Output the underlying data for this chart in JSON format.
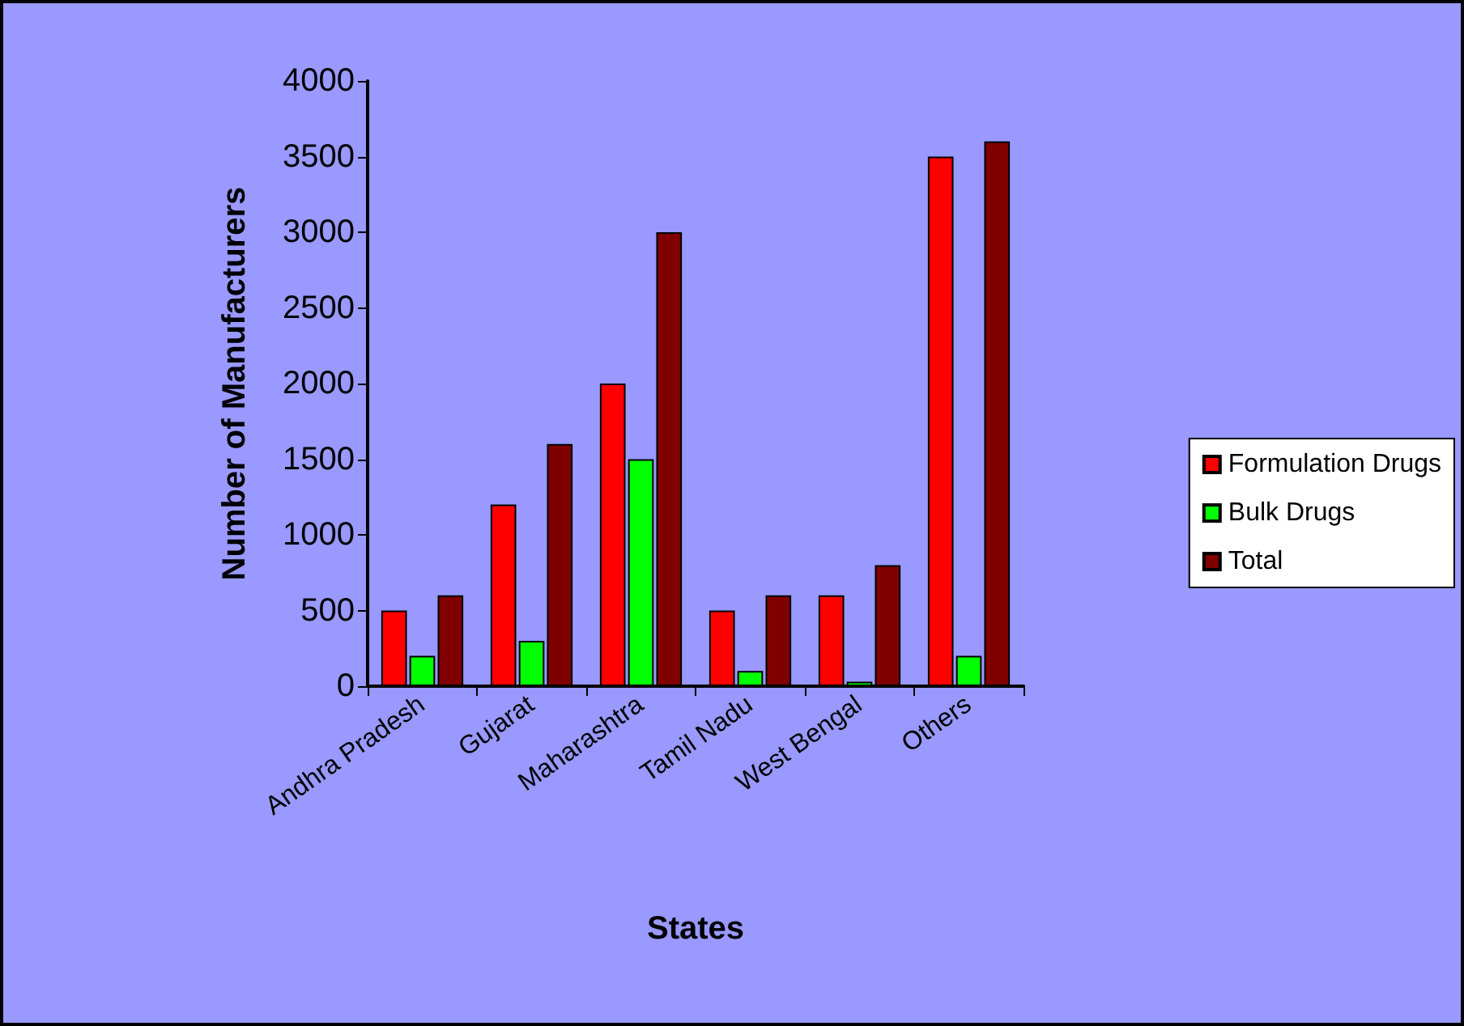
{
  "chart_data": {
    "type": "bar",
    "xlabel": "States",
    "ylabel": "Number of Manufacturers",
    "categories": [
      "Andhra Pradesh",
      "Gujarat",
      "Maharashtra",
      "Tamil Nadu",
      "West Bengal",
      "Others"
    ],
    "series": [
      {
        "name": "Formulation Drugs",
        "color": "#ff0000",
        "values": [
          500,
          1200,
          2000,
          500,
          600,
          3500
        ]
      },
      {
        "name": "Bulk Drugs",
        "color": "#00ff00",
        "values": [
          200,
          300,
          1500,
          100,
          30,
          200
        ]
      },
      {
        "name": "Total",
        "color": "#800000",
        "values": [
          600,
          1600,
          3000,
          600,
          800,
          3600
        ]
      }
    ],
    "ylim": [
      0,
      4000
    ],
    "yticks": [
      0,
      500,
      1000,
      1500,
      2000,
      2500,
      3000,
      3500,
      4000
    ],
    "grid": false,
    "legend": "right"
  }
}
